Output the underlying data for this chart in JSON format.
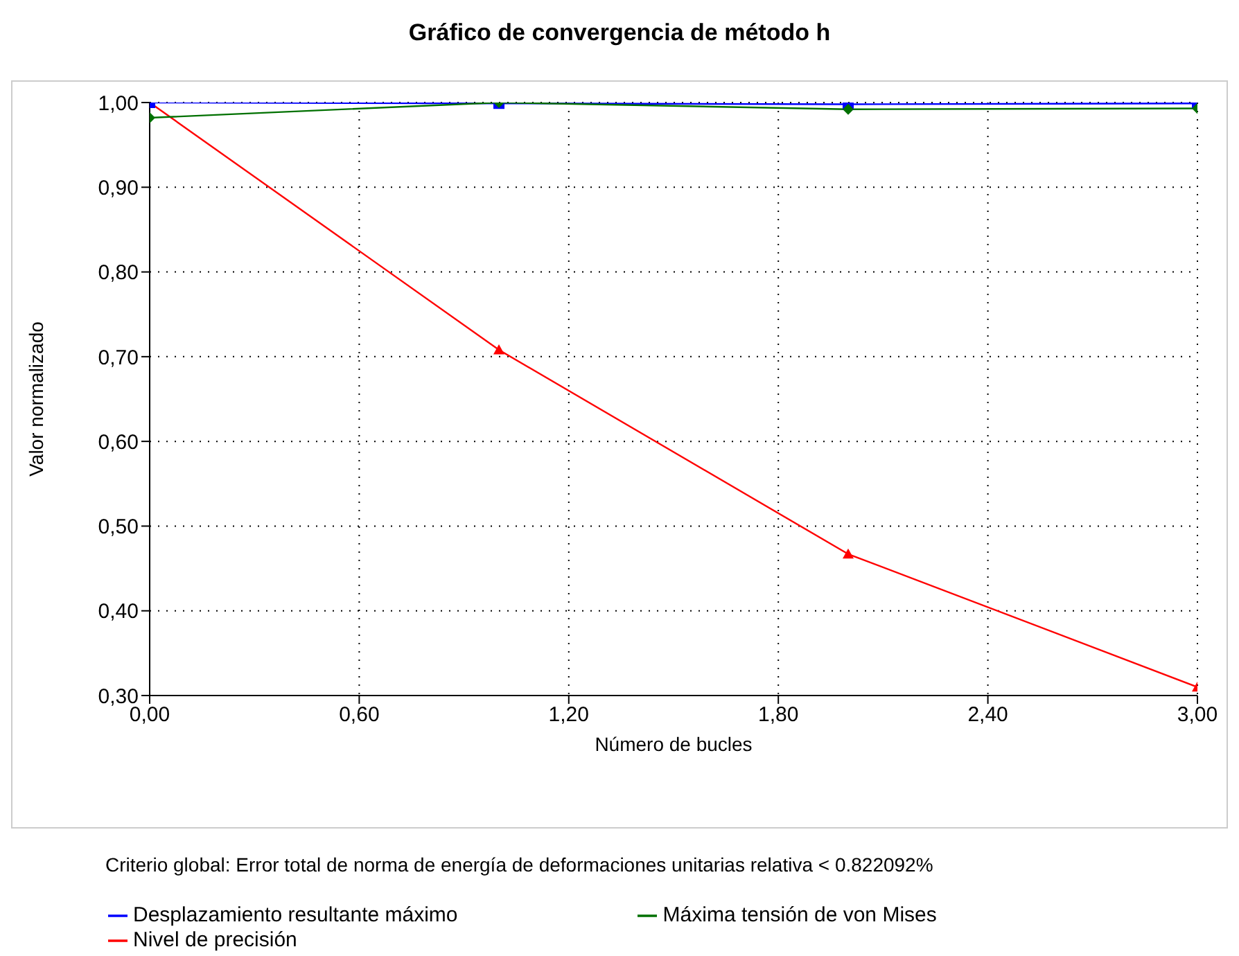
{
  "chart_data": {
    "type": "line",
    "title": "Gráfico de convergencia de método h",
    "xlabel": "Número de bucles",
    "ylabel": "Valor normalizado",
    "x": [
      0,
      1,
      2,
      3
    ],
    "series": [
      {
        "name": "Nivel de precisión",
        "color": "#ff0000",
        "marker": "triangle",
        "values": [
          1.0,
          0.708,
          0.467,
          0.31
        ]
      },
      {
        "name": "Desplazamiento resultante máximo",
        "color": "#0000ff",
        "marker": "square",
        "values": [
          1.0,
          0.999,
          0.998,
          0.999
        ]
      },
      {
        "name": "Máxima tensión de von Mises",
        "color": "#007000",
        "marker": "diamond",
        "values": [
          0.982,
          1.0,
          0.992,
          0.993
        ]
      }
    ],
    "xlim": [
      0,
      3
    ],
    "xticks": [
      {
        "value": 0,
        "label": "0,00"
      },
      {
        "value": 0.6,
        "label": "0,60"
      },
      {
        "value": 1.2,
        "label": "1,20"
      },
      {
        "value": 1.8,
        "label": "1,80"
      },
      {
        "value": 2.4,
        "label": "2,40"
      },
      {
        "value": 3,
        "label": "3,00"
      }
    ],
    "ylim": [
      0.3,
      1.0
    ],
    "yticks": [
      {
        "value": 0.3,
        "label": "0,30"
      },
      {
        "value": 0.4,
        "label": "0,40"
      },
      {
        "value": 0.5,
        "label": "0,50"
      },
      {
        "value": 0.6,
        "label": "0,60"
      },
      {
        "value": 0.7,
        "label": "0,70"
      },
      {
        "value": 0.8,
        "label": "0,80"
      },
      {
        "value": 0.9,
        "label": "0,90"
      },
      {
        "value": 1.0,
        "label": "1,00"
      }
    ],
    "grid": true,
    "legend": "bottom",
    "line_style": "solid",
    "annotations": [
      "Criterio global: Error total de norma de energía de deformaciones unitarias relativa < 0.822092%"
    ]
  }
}
